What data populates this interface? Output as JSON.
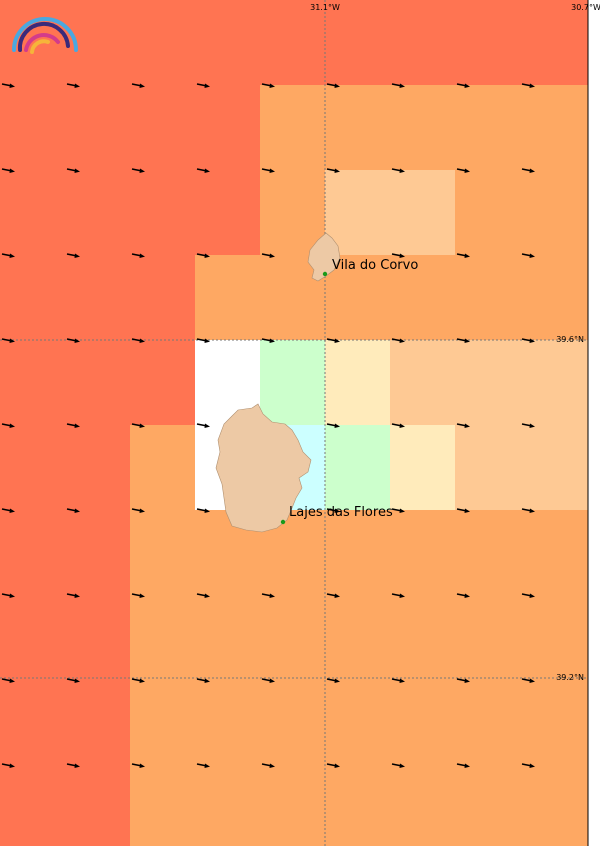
{
  "map": {
    "lon_labels": [
      "31.1°W",
      "30.7°W"
    ],
    "lat_labels": [
      "39.6°N",
      "39.2°N"
    ],
    "places": [
      {
        "name": "Vila do Corvo"
      },
      {
        "name": "Lajes das Flores"
      }
    ]
  }
}
